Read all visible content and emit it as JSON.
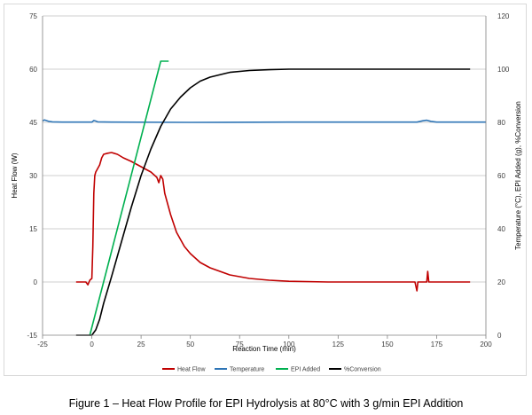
{
  "caption": "Figure 1 – Heat Flow Profile for EPI Hydrolysis at 80°C with 3 g/min EPI Addition",
  "chart_data": {
    "type": "line",
    "title": "",
    "xlabel": "Reaction Time (min)",
    "ylabel_left": "Heat Flow (W)",
    "ylabel_right": "Temperature (°C), EPI Added (g), %Conversion",
    "xlim": [
      -25,
      200
    ],
    "ylim_left": [
      -15,
      75
    ],
    "ylim_right": [
      0,
      120
    ],
    "x_ticks": [
      "-25",
      "0",
      "25",
      "50",
      "75",
      "100",
      "125",
      "150",
      "175",
      "200"
    ],
    "y_left_ticks": [
      "-15",
      "0",
      "15",
      "30",
      "45",
      "60",
      "75"
    ],
    "y_right_ticks": [
      "0",
      "20",
      "40",
      "60",
      "80",
      "100",
      "120"
    ],
    "grid": "horizontal",
    "legend_position": "bottom",
    "series": [
      {
        "name": "Heat Flow",
        "axis": "left",
        "color": "#c00000",
        "points": [
          [
            -8,
            0
          ],
          [
            -3,
            0
          ],
          [
            -2,
            -0.8
          ],
          [
            -1,
            0.5
          ],
          [
            0,
            1
          ],
          [
            0.5,
            10
          ],
          [
            1,
            25
          ],
          [
            1.5,
            30
          ],
          [
            2,
            31
          ],
          [
            3,
            32
          ],
          [
            4,
            33
          ],
          [
            5,
            35
          ],
          [
            6,
            36
          ],
          [
            8,
            36.3
          ],
          [
            10,
            36.5
          ],
          [
            13,
            36
          ],
          [
            16,
            35
          ],
          [
            20,
            34
          ],
          [
            25,
            32.5
          ],
          [
            30,
            31
          ],
          [
            33,
            29.5
          ],
          [
            34,
            28
          ],
          [
            35,
            30
          ],
          [
            36,
            29
          ],
          [
            37,
            25
          ],
          [
            40,
            19
          ],
          [
            43,
            14
          ],
          [
            47,
            10
          ],
          [
            50,
            8
          ],
          [
            55,
            5.5
          ],
          [
            60,
            4
          ],
          [
            70,
            2
          ],
          [
            80,
            1
          ],
          [
            90,
            0.5
          ],
          [
            100,
            0.2
          ],
          [
            120,
            0
          ],
          [
            140,
            0
          ],
          [
            160,
            0
          ],
          [
            164,
            0
          ],
          [
            165,
            -2.5
          ],
          [
            165.5,
            0
          ],
          [
            170,
            0
          ],
          [
            170.5,
            3
          ],
          [
            171,
            0
          ],
          [
            180,
            0
          ],
          [
            192,
            0
          ]
        ]
      },
      {
        "name": "Temperature",
        "axis": "right",
        "color": "#2e75b6",
        "points": [
          [
            -26,
            80.6
          ],
          [
            -24,
            80.9
          ],
          [
            -22,
            80.4
          ],
          [
            -20,
            80.2
          ],
          [
            -15,
            80.1
          ],
          [
            0,
            80.1
          ],
          [
            1,
            80.7
          ],
          [
            2,
            80.5
          ],
          [
            3,
            80.2
          ],
          [
            10,
            80.1
          ],
          [
            50,
            80.0
          ],
          [
            100,
            80.1
          ],
          [
            150,
            80.1
          ],
          [
            165,
            80.1
          ],
          [
            168,
            80.6
          ],
          [
            170,
            80.8
          ],
          [
            172,
            80.4
          ],
          [
            175,
            80.1
          ],
          [
            200,
            80.1
          ]
        ]
      },
      {
        "name": "EPI Added",
        "axis": "right",
        "color": "#00b050",
        "points": [
          [
            -1,
            0
          ],
          [
            35,
            103
          ],
          [
            39,
            103
          ]
        ]
      },
      {
        "name": "%Conversion",
        "axis": "right",
        "color": "#000000",
        "points": [
          [
            -8,
            0
          ],
          [
            0,
            0
          ],
          [
            2,
            2
          ],
          [
            4,
            6
          ],
          [
            6,
            12
          ],
          [
            10,
            22
          ],
          [
            15,
            35
          ],
          [
            20,
            48
          ],
          [
            25,
            60
          ],
          [
            30,
            70
          ],
          [
            35,
            78.5
          ],
          [
            40,
            85
          ],
          [
            45,
            89.5
          ],
          [
            50,
            93
          ],
          [
            55,
            95.5
          ],
          [
            60,
            97
          ],
          [
            70,
            98.8
          ],
          [
            80,
            99.5
          ],
          [
            90,
            99.8
          ],
          [
            100,
            100
          ],
          [
            150,
            100
          ],
          [
            192,
            100
          ]
        ]
      }
    ]
  }
}
